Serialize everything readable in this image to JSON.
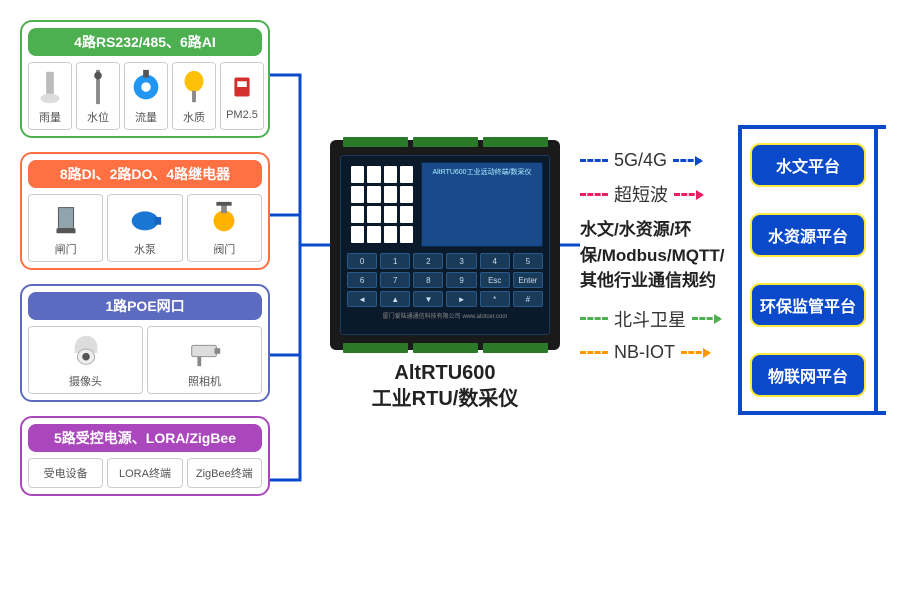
{
  "left_groups": [
    {
      "title": "4路RS232/485、6路AI",
      "border_color": "#4caf50",
      "header_bg": "#4caf50",
      "sensors": [
        {
          "label": "雨量",
          "icon": "rain"
        },
        {
          "label": "水位",
          "icon": "level"
        },
        {
          "label": "流量",
          "icon": "flow"
        },
        {
          "label": "水质",
          "icon": "quality"
        },
        {
          "label": "PM2.5",
          "icon": "pm"
        }
      ]
    },
    {
      "title": "8路DI、2路DO、4路继电器",
      "border_color": "#ff7043",
      "header_bg": "#ff7043",
      "sensors": [
        {
          "label": "闸门",
          "icon": "gate"
        },
        {
          "label": "水泵",
          "icon": "pump"
        },
        {
          "label": "阀门",
          "icon": "valve"
        }
      ]
    },
    {
      "title": "1路POE网口",
      "border_color": "#5c6bc0",
      "header_bg": "#5c6bc0",
      "sensors": [
        {
          "label": "摄像头",
          "icon": "dome"
        },
        {
          "label": "照相机",
          "icon": "cctv"
        }
      ]
    },
    {
      "title": "5路受控电源、LORA/ZigBee",
      "border_color": "#ab47bc",
      "header_bg": "#ab47bc",
      "text_sensors": [
        "受电设备",
        "LORA终端",
        "ZigBee终端"
      ]
    }
  ],
  "device": {
    "screen_text": "AltRTU600工业远动终端/数采仪",
    "footer_text": "厦门爱陆通通信科技有限公司  www.alotcer.com",
    "keys": [
      "0",
      "1",
      "2",
      "3",
      "4",
      "5",
      "6",
      "7",
      "8",
      "9",
      "Esc",
      "Enter",
      "◄",
      "▲",
      "▼",
      "►",
      "*",
      "#"
    ],
    "title_line1": "AltRTU600",
    "title_line2": "工业RTU/数采仪"
  },
  "comms": [
    {
      "label": "5G/4G",
      "color": "#0a4aca"
    },
    {
      "label": "超短波",
      "color": "#e91e63"
    }
  ],
  "protocols": "水文/水资源/环保/Modbus/MQTT/其他行业通信规约",
  "comms2": [
    {
      "label": "北斗卫星",
      "color": "#4caf50"
    },
    {
      "label": "NB-IOT",
      "color": "#ff9800"
    }
  ],
  "platforms": [
    "水文平台",
    "水资源平台",
    "环保监管平台",
    "物联网平台"
  ],
  "connector_color": "#0a4aca"
}
